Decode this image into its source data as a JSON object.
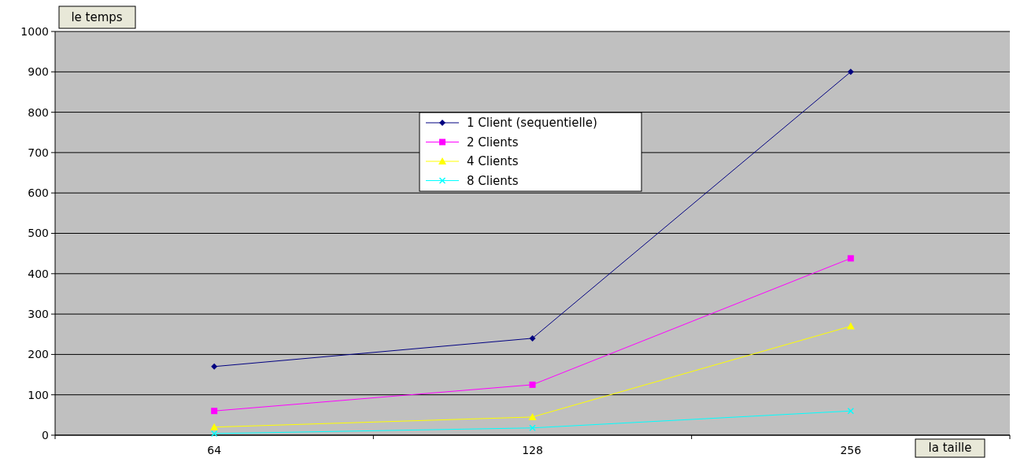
{
  "chart_data": {
    "type": "line",
    "xlabel": "la taille",
    "ylabel": "le temps",
    "categories": [
      "64",
      "128",
      "256"
    ],
    "ylim": [
      0,
      1000
    ],
    "yticks": [
      0,
      100,
      200,
      300,
      400,
      500,
      600,
      700,
      800,
      900,
      1000
    ],
    "grid": "y",
    "legend": "top",
    "series": [
      {
        "name": "1 Client (sequentielle)",
        "color": "#000080",
        "marker": "diamond",
        "values": [
          170,
          240,
          900
        ]
      },
      {
        "name": "2 Clients",
        "color": "#ff00ff",
        "marker": "square",
        "values": [
          60,
          125,
          438
        ]
      },
      {
        "name": "4 Clients",
        "color": "#ffff00",
        "marker": "triangle",
        "values": [
          20,
          45,
          270
        ]
      },
      {
        "name": "8 Clients",
        "color": "#00ffff",
        "marker": "cross",
        "values": [
          4,
          18,
          60
        ]
      }
    ]
  }
}
